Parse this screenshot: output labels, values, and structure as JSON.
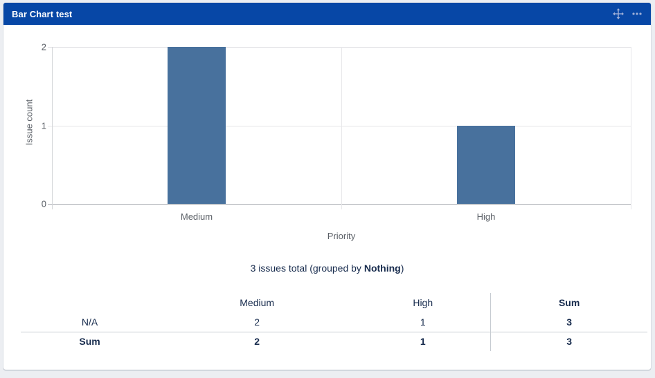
{
  "header": {
    "title": "Bar Chart test",
    "icons": [
      {
        "name": "move-icon"
      },
      {
        "name": "more-options-icon"
      }
    ]
  },
  "chart_data": {
    "type": "bar",
    "title": "Bar Chart test",
    "categories": [
      "Medium",
      "High"
    ],
    "values": [
      2,
      1
    ],
    "xlabel": "Priority",
    "ylabel": "Issue count",
    "ylim": [
      0,
      2
    ],
    "yticks": [
      0,
      1,
      2
    ],
    "bar_color": "#48719d",
    "grid": true,
    "legend": false
  },
  "summary": {
    "prefix": "3 issues total (grouped by ",
    "group_by": "Nothing",
    "suffix": ")"
  },
  "table": {
    "column_headers": [
      "",
      "Medium",
      "High",
      "Sum"
    ],
    "rows": [
      {
        "label": "N/A",
        "values": [
          "2",
          "1",
          "3"
        ],
        "is_total": false
      },
      {
        "label": "Sum",
        "values": [
          "2",
          "1",
          "3"
        ],
        "is_total": true
      }
    ]
  },
  "colors": {
    "header_bg": "#0747A6",
    "header_icon": "#9fb0d8",
    "bar": "#48719d",
    "text": "#172B4D",
    "axis_text": "#5a5f66",
    "page_bg": "#eceef2"
  }
}
